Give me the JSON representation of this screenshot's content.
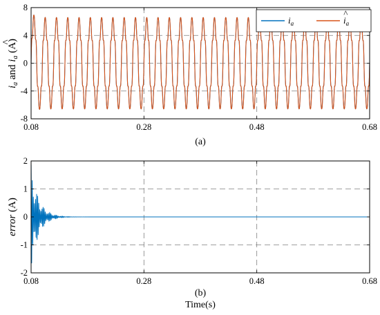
{
  "colors": {
    "ia": "#0072bd",
    "ia_hat": "#d95319",
    "error": "#0072bd",
    "grid": "#7f7f7f",
    "axes": "#000000"
  },
  "chart_data": [
    {
      "type": "line",
      "caption": "(a)",
      "ylabel_parts": {
        "i1": "i",
        "s1": "a",
        "and": " and ",
        "i2": "i",
        "s2": "a",
        "unit": " (A)"
      },
      "xlim": [
        0.08,
        0.68
      ],
      "ylim": [
        -8,
        8
      ],
      "xticks": [
        "0.08",
        "0.28",
        "0.48",
        "0.68"
      ],
      "xtick_values": [
        0.08,
        0.28,
        0.48,
        0.68
      ],
      "yticks": [
        "-8",
        "-4",
        "0",
        "4",
        "8"
      ],
      "ytick_values": [
        -8,
        -4,
        0,
        4,
        8
      ],
      "grid": "dashed",
      "legend_position": "top-right",
      "series": [
        {
          "legend": "i",
          "legend_sub": "a",
          "hat": false,
          "amplitude": 6.2,
          "frequency_hz": 50
        },
        {
          "legend": "i",
          "legend_sub": "a",
          "hat": true,
          "amplitude": 6.2,
          "frequency_hz": 50,
          "initial_peak": 7.0
        }
      ]
    },
    {
      "type": "line",
      "caption": "(b)",
      "xlabel": "Time(s)",
      "ylabel_parts": {
        "word": "error",
        "unit": " (A)"
      },
      "xlim": [
        0.08,
        0.68
      ],
      "ylim": [
        -2,
        2
      ],
      "xticks": [
        "0.08",
        "0.28",
        "0.48",
        "0.68"
      ],
      "xtick_values": [
        0.08,
        0.28,
        0.48,
        0.68
      ],
      "yticks": [
        "-2",
        "-1",
        "0",
        "1",
        "2"
      ],
      "ytick_values": [
        -2,
        -1,
        0,
        1,
        2
      ],
      "grid": "dashed",
      "series": [
        {
          "initial_peak": 1.9,
          "min": -1.7,
          "settling_time_s": 0.18,
          "steady_value": 0
        }
      ]
    }
  ]
}
